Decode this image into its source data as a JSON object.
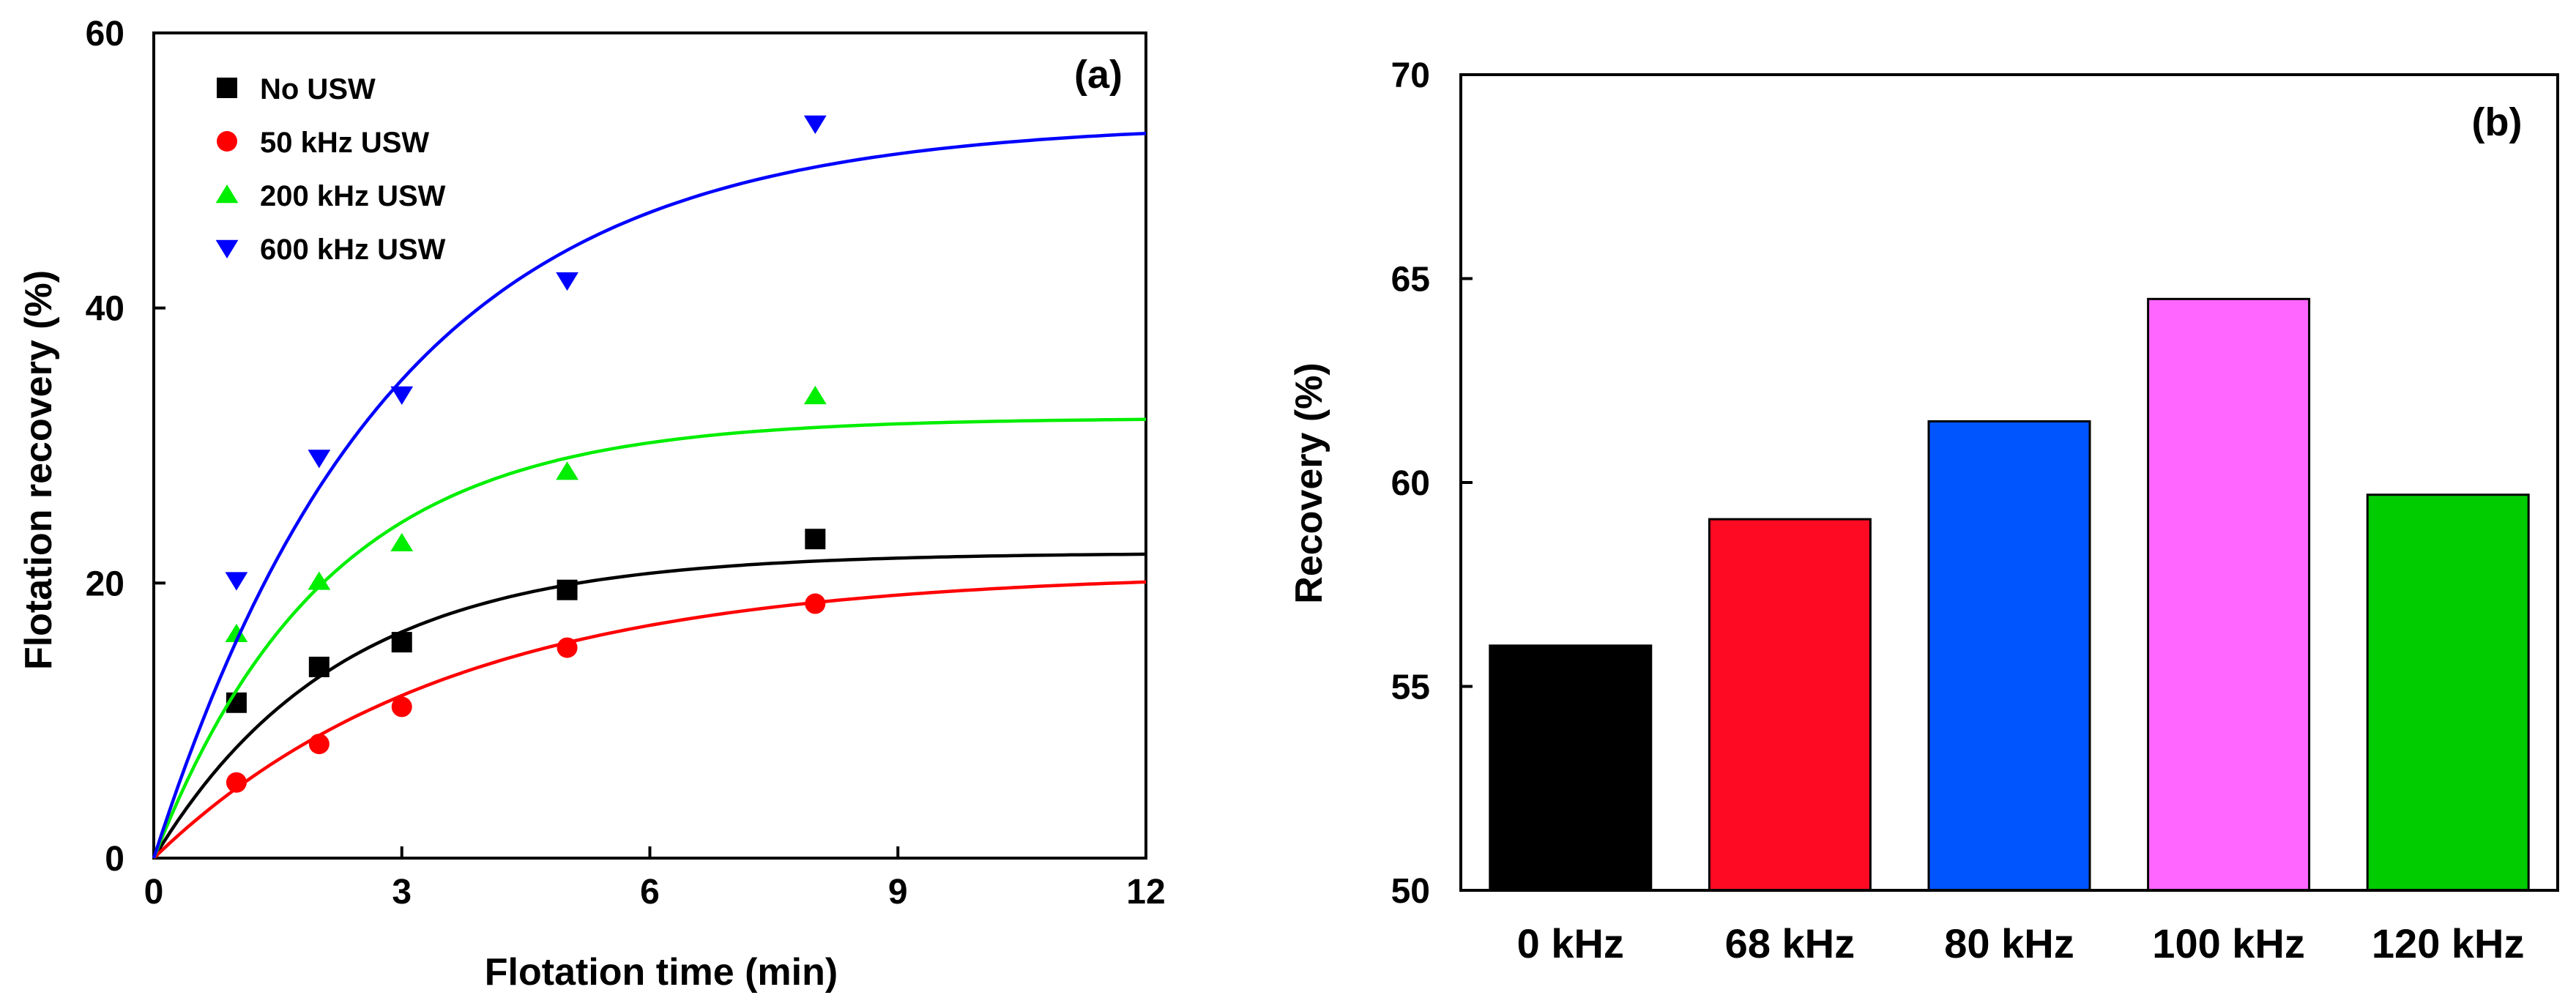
{
  "chart_data": [
    {
      "panel": "(a)",
      "type": "scatter",
      "xlabel": "Flotation time (min)",
      "ylabel": "Flotation recovery (%)",
      "xlim": [
        0,
        12
      ],
      "ylim": [
        0,
        60
      ],
      "xticks": [
        0,
        3,
        6,
        9,
        12
      ],
      "yticks": [
        0,
        20,
        40,
        60
      ],
      "legend_position": "top-left",
      "series": [
        {
          "name": "No USW",
          "marker": "square",
          "color": "#000000",
          "x": [
            1,
            2,
            3,
            5,
            8
          ],
          "y": [
            11.3,
            13.9,
            15.7,
            19.5,
            23.2
          ],
          "fit": {
            "max": 22.2,
            "k": 0.45
          }
        },
        {
          "name": "50 kHz USW",
          "marker": "circle",
          "color": "#ff0000",
          "x": [
            1,
            2,
            3,
            5,
            8
          ],
          "y": [
            5.5,
            8.3,
            11.0,
            15.3,
            18.5
          ],
          "fit": {
            "max": 20.8,
            "k": 0.28
          }
        },
        {
          "name": "200 kHz USW",
          "marker": "triangle-up",
          "color": "#00ee00",
          "x": [
            1,
            2,
            3,
            5,
            8
          ],
          "y": [
            16.3,
            20.1,
            22.9,
            28.1,
            33.6
          ],
          "fit": {
            "max": 32.0,
            "k": 0.48
          }
        },
        {
          "name": "600 kHz USW",
          "marker": "triangle-down",
          "color": "#0000ff",
          "x": [
            1,
            2,
            3,
            5,
            8
          ],
          "y": [
            20.2,
            29.1,
            33.7,
            42.0,
            53.4
          ],
          "fit": {
            "max": 53.5,
            "k": 0.35
          }
        }
      ]
    },
    {
      "panel": "(b)",
      "type": "bar",
      "xlabel": "",
      "ylabel": "Recovery (%)",
      "ylim": [
        50,
        70
      ],
      "yticks": [
        50,
        55,
        60,
        65,
        70
      ],
      "categories": [
        "0 kHz",
        "68 kHz",
        "80 kHz",
        "100 kHz",
        "120 kHz"
      ],
      "values": [
        56.0,
        59.1,
        61.5,
        64.5,
        59.7
      ],
      "colors": [
        "#000000",
        "#ff0a23",
        "#0055ff",
        "#ff66ff",
        "#00cc00"
      ]
    }
  ]
}
